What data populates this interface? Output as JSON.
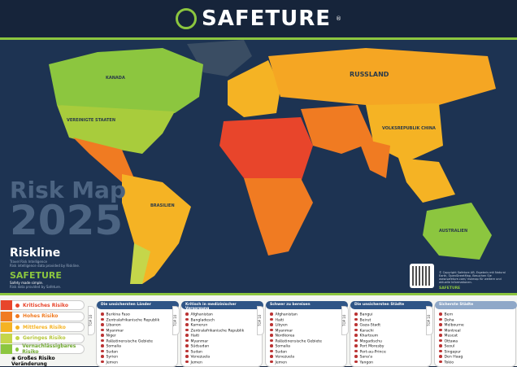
{
  "header": {
    "brand": "SAFETURE",
    "registered": "®"
  },
  "title": {
    "line1": "Risk Map",
    "line2": "2025"
  },
  "partners": {
    "riskline": {
      "name": "Riskline",
      "tagline": "Travel Risk Intelligence",
      "note": "Risk intelligence data provided by Riskline."
    },
    "safeture": {
      "name": "SAFETURE",
      "tagline": "Safety made simple.",
      "note": "Risk data provided by Safeture."
    }
  },
  "map_labels": [
    "KANADA",
    "VEREINIGTE STAATEN",
    "BRASILIEN",
    "RUSSLAND",
    "VOLKSREPUBLIK CHINA",
    "AUSTRALIEN"
  ],
  "copyright": "© Copyright Safeture AB. Ergebnis mit Natural Earth, OpenStreetMap. Besuchen Sie www.safeture.com/ riskmap für weitere und aktuelle Informationen.",
  "footer_brand": "SAFETURE",
  "colors": {
    "critical": "#e8452b",
    "high": "#f07b22",
    "medium": "#f5b324",
    "low": "#c5d64a",
    "negligible": "#8cc63f",
    "ocean": "#1d3352",
    "header": "#16243a",
    "panel_head": "#2f5586"
  },
  "legend": [
    {
      "label": "Kritisches Risiko",
      "color": "#e8452b"
    },
    {
      "label": "Hohes Risiko",
      "color": "#f07b22"
    },
    {
      "label": "Mittleres Risiko",
      "color": "#f5b324"
    },
    {
      "label": "Geringes Risiko",
      "color": "#c5d64a"
    },
    {
      "label": "Vernachlässigbares Risiko",
      "color": "#8cc63f"
    }
  ],
  "legend_change": "Großes Risiko Veränderung",
  "top_tag": "TOP 10",
  "panels": [
    {
      "title": "Die unsichersten Länder",
      "items": [
        "Burkina Faso",
        "Zentralafrikanische Republik",
        "Libanon",
        "Myanmar",
        "Niger",
        "Palästinensische Gebiete",
        "Somalia",
        "Sudan",
        "Syrien",
        "Jemen"
      ]
    },
    {
      "title": "Kritisch in medizinischer Versorgung",
      "items": [
        "Afghanistan",
        "Bangladesch",
        "Kamerun",
        "Zentralafrikanische Republik",
        "Haiti",
        "Myanmar",
        "Südsudan",
        "Sudan",
        "Venezuela",
        "Jemen"
      ]
    },
    {
      "title": "Schwer zu bereisen",
      "items": [
        "Afghanistan",
        "Haiti",
        "Libyen",
        "Myanmar",
        "Nordkorea",
        "Palästinensische Gebiete",
        "Somalia",
        "Sudan",
        "Venezuela",
        "Jemen"
      ]
    },
    {
      "title": "Die unsichersten Städte",
      "items": [
        "Bangui",
        "Beirut",
        "Gaza-Stadt",
        "Karachi",
        "Khartoum",
        "Mogadischu",
        "Port Moresby",
        "Port-au-Prince",
        "Sana'a",
        "Yangon"
      ]
    },
    {
      "title": "Sicherste Städte",
      "items": [
        "Bern",
        "Doha",
        "Melbourne",
        "Montreal",
        "Muscat",
        "Ottawa",
        "Seoul",
        "Singapur",
        "Den Haag",
        "Tokio"
      ]
    }
  ]
}
